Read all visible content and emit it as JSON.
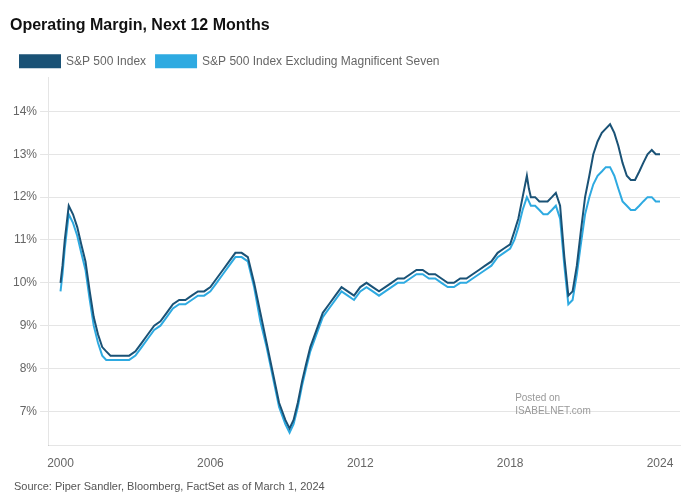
{
  "chart_data": {
    "type": "line",
    "title": "Operating Margin, Next 12 Months",
    "annotations": [
      {
        "text": "Source: Piper Sandler, Bloomberg, FactSet as of March 1, 2024"
      },
      {
        "text": "Posted on\nISABELNET.com",
        "x": 2018.2,
        "y": 0.0715
      }
    ],
    "x": [
      2000.0,
      2000.08,
      2000.17,
      2000.25,
      2000.33,
      2000.5,
      2000.67,
      2000.83,
      2001.0,
      2001.17,
      2001.33,
      2001.5,
      2001.67,
      2001.83,
      2002.0,
      2002.25,
      2002.5,
      2002.75,
      2003.0,
      2003.25,
      2003.5,
      2003.75,
      2004.0,
      2004.25,
      2004.5,
      2004.75,
      2005.0,
      2005.25,
      2005.5,
      2005.75,
      2006.0,
      2006.25,
      2006.5,
      2006.75,
      2007.0,
      2007.25,
      2007.5,
      2007.75,
      2008.0,
      2008.25,
      2008.5,
      2008.75,
      2009.0,
      2009.17,
      2009.33,
      2009.5,
      2009.67,
      2009.83,
      2010.0,
      2010.25,
      2010.5,
      2010.75,
      2011.0,
      2011.25,
      2011.5,
      2011.75,
      2012.0,
      2012.25,
      2012.5,
      2012.75,
      2013.0,
      2013.25,
      2013.5,
      2013.75,
      2014.0,
      2014.25,
      2014.5,
      2014.75,
      2015.0,
      2015.25,
      2015.5,
      2015.75,
      2016.0,
      2016.25,
      2016.5,
      2016.75,
      2017.0,
      2017.25,
      2017.5,
      2017.75,
      2018.0,
      2018.17,
      2018.33,
      2018.5,
      2018.67,
      2018.75,
      2018.83,
      2019.0,
      2019.17,
      2019.33,
      2019.5,
      2019.67,
      2019.83,
      2020.0,
      2020.17,
      2020.33,
      2020.5,
      2020.67,
      2020.83,
      2021.0,
      2021.17,
      2021.33,
      2021.5,
      2021.67,
      2021.83,
      2022.0,
      2022.17,
      2022.33,
      2022.5,
      2022.67,
      2022.83,
      2023.0,
      2023.17,
      2023.33,
      2023.5,
      2023.67,
      2023.83,
      2024.0
    ],
    "series": [
      {
        "name": "S&P 500 Index",
        "color": "#1a5276",
        "values": [
          0.1,
          0.104,
          0.11,
          0.114,
          0.118,
          0.116,
          0.113,
          0.109,
          0.105,
          0.098,
          0.092,
          0.088,
          0.085,
          0.084,
          0.083,
          0.083,
          0.083,
          0.083,
          0.084,
          0.086,
          0.088,
          0.09,
          0.091,
          0.093,
          0.095,
          0.096,
          0.096,
          0.097,
          0.098,
          0.098,
          0.099,
          0.101,
          0.103,
          0.105,
          0.107,
          0.107,
          0.106,
          0.1,
          0.093,
          0.086,
          0.079,
          0.072,
          0.068,
          0.066,
          0.068,
          0.072,
          0.077,
          0.081,
          0.085,
          0.089,
          0.093,
          0.095,
          0.097,
          0.099,
          0.098,
          0.097,
          0.099,
          0.1,
          0.099,
          0.098,
          0.099,
          0.1,
          0.101,
          0.101,
          0.102,
          0.103,
          0.103,
          0.102,
          0.102,
          0.101,
          0.1,
          0.1,
          0.101,
          0.101,
          0.102,
          0.103,
          0.104,
          0.105,
          0.107,
          0.108,
          0.109,
          0.112,
          0.115,
          0.12,
          0.125,
          0.122,
          0.12,
          0.12,
          0.119,
          0.119,
          0.119,
          0.12,
          0.121,
          0.118,
          0.106,
          0.097,
          0.098,
          0.104,
          0.112,
          0.12,
          0.125,
          0.13,
          0.133,
          0.135,
          0.136,
          0.137,
          0.135,
          0.132,
          0.128,
          0.125,
          0.124,
          0.124,
          0.126,
          0.128,
          0.13,
          0.131,
          0.13,
          0.13
        ]
      },
      {
        "name": "S&P 500 Index Excluding Magnificent Seven",
        "color": "#2eaae1",
        "values": [
          0.098,
          0.102,
          0.108,
          0.112,
          0.116,
          0.114,
          0.111,
          0.107,
          0.103,
          0.096,
          0.09,
          0.086,
          0.083,
          0.082,
          0.082,
          0.082,
          0.082,
          0.082,
          0.083,
          0.085,
          0.087,
          0.089,
          0.09,
          0.092,
          0.094,
          0.095,
          0.095,
          0.096,
          0.097,
          0.097,
          0.098,
          0.1,
          0.102,
          0.104,
          0.106,
          0.106,
          0.105,
          0.099,
          0.091,
          0.085,
          0.078,
          0.071,
          0.067,
          0.065,
          0.067,
          0.071,
          0.076,
          0.08,
          0.084,
          0.088,
          0.092,
          0.094,
          0.096,
          0.098,
          0.097,
          0.096,
          0.098,
          0.099,
          0.098,
          0.097,
          0.098,
          0.099,
          0.1,
          0.1,
          0.101,
          0.102,
          0.102,
          0.101,
          0.101,
          0.1,
          0.099,
          0.099,
          0.1,
          0.1,
          0.101,
          0.102,
          0.103,
          0.104,
          0.106,
          0.107,
          0.108,
          0.11,
          0.113,
          0.117,
          0.12,
          0.119,
          0.118,
          0.118,
          0.117,
          0.116,
          0.116,
          0.117,
          0.118,
          0.115,
          0.104,
          0.095,
          0.096,
          0.102,
          0.109,
          0.116,
          0.12,
          0.123,
          0.125,
          0.126,
          0.127,
          0.127,
          0.125,
          0.122,
          0.119,
          0.118,
          0.117,
          0.117,
          0.118,
          0.119,
          0.12,
          0.12,
          0.119,
          0.119
        ]
      }
    ],
    "xlim": [
      1999.5,
      2024.8
    ],
    "xticks": [
      2000,
      2006,
      2012,
      2018,
      2024
    ],
    "ylim": [
      0.062,
      0.148
    ],
    "yticks": [
      {
        "value": 0.07,
        "label": "7%"
      },
      {
        "value": 0.08,
        "label": "8%"
      },
      {
        "value": 0.09,
        "label": "9%"
      },
      {
        "value": 0.1,
        "label": "10%"
      },
      {
        "value": 0.11,
        "label": "11%"
      },
      {
        "value": 0.12,
        "label": "12%"
      },
      {
        "value": 0.13,
        "label": "13%"
      },
      {
        "value": 0.14,
        "label": "14%"
      }
    ],
    "grid": "y",
    "legend": "top"
  }
}
